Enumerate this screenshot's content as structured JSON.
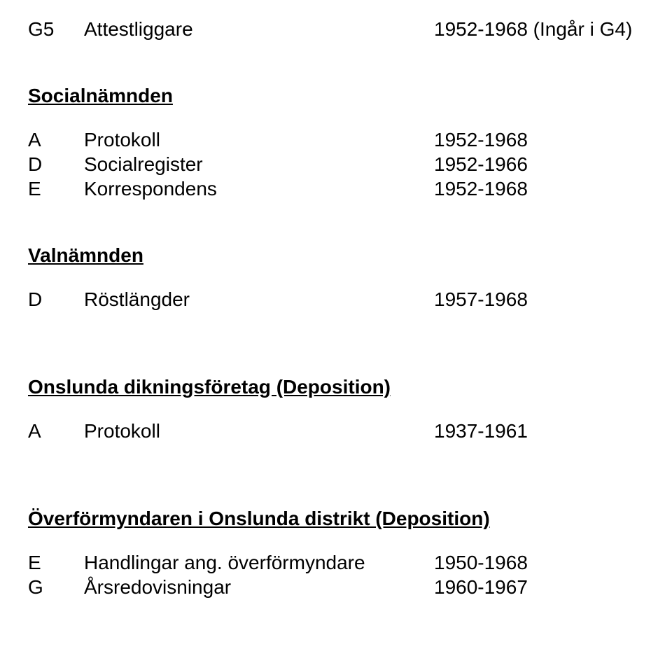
{
  "colors": {
    "background": "#ffffff",
    "text": "#000000"
  },
  "typography": {
    "font_family": "Arial, Helvetica, sans-serif",
    "body_fontsize_pt": 21,
    "heading_weight": "bold",
    "heading_decoration": "underline"
  },
  "top_row": {
    "code": "G5",
    "label": "Attestliggare",
    "value": "1952-1968 (Ingår i G4)"
  },
  "sections": [
    {
      "heading": "Socialnämnden",
      "rows": [
        {
          "code": "A",
          "label": "Protokoll",
          "value": "1952-1968"
        },
        {
          "code": "D",
          "label": "Socialregister",
          "value": "1952-1966"
        },
        {
          "code": "E",
          "label": "Korrespondens",
          "value": "1952-1968"
        }
      ]
    },
    {
      "heading": "Valnämnden",
      "rows": [
        {
          "code": "D",
          "label": "Röstlängder",
          "value": "1957-1968"
        }
      ]
    },
    {
      "heading": "Onslunda dikningsföretag (Deposition)",
      "rows": [
        {
          "code": "A",
          "label": "Protokoll",
          "value": "1937-1961"
        }
      ]
    },
    {
      "heading": "Överförmyndaren i Onslunda distrikt (Deposition)",
      "rows": [
        {
          "code": "E",
          "label": "Handlingar ang. överförmyndare",
          "value": "1950-1968"
        },
        {
          "code": "G",
          "label": "Årsredovisningar",
          "value": "1960-1967"
        }
      ]
    }
  ]
}
